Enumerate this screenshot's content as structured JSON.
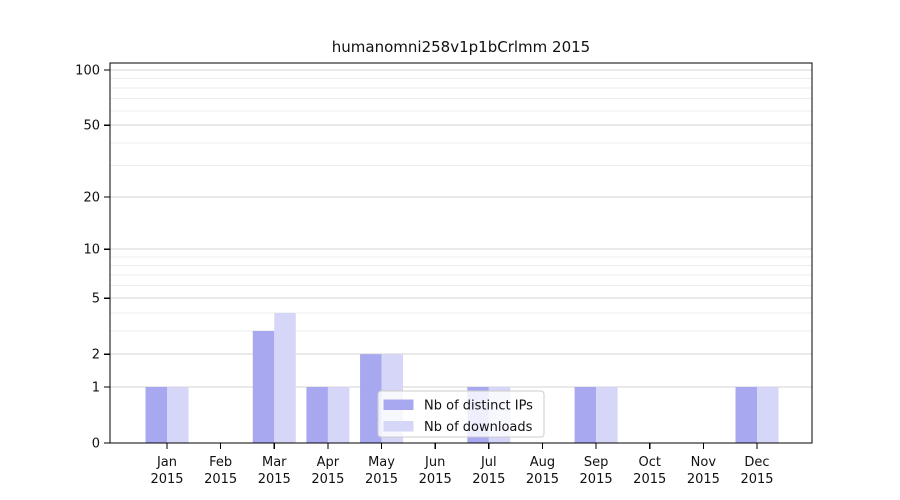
{
  "chart_data": {
    "type": "bar",
    "title": "humanomni258v1p1bCrlmm 2015",
    "categories": [
      "Jan",
      "Feb",
      "Mar",
      "Apr",
      "May",
      "Jun",
      "Jul",
      "Aug",
      "Sep",
      "Oct",
      "Nov",
      "Dec"
    ],
    "year": "2015",
    "series": [
      {
        "name": "Nb of distinct IPs",
        "color": "#a8a8f0",
        "values": [
          1,
          0,
          3,
          1,
          2,
          0,
          1,
          0,
          1,
          0,
          0,
          1
        ]
      },
      {
        "name": "Nb of downloads",
        "color": "#d6d6f8",
        "values": [
          1,
          0,
          4,
          1,
          2,
          0,
          1,
          0,
          1,
          0,
          0,
          1
        ]
      }
    ],
    "xlabel": "",
    "ylabel": "",
    "y_scale": "log1p",
    "y_ticks": [
      0,
      1,
      2,
      5,
      10,
      20,
      50,
      100
    ],
    "y_minor_grid": [
      3,
      4,
      6,
      7,
      8,
      9,
      30,
      40,
      60,
      70,
      80,
      90
    ],
    "ylim": [
      0,
      110
    ],
    "grid": "horizontal",
    "legend_position": "lower center",
    "colors": {
      "background": "#ffffff",
      "spine": "#000000",
      "major_grid": "#d3d3d3",
      "minor_grid": "#ececec",
      "legend_border": "#cccccc",
      "legend_background": "rgba(255,255,255,0.8)",
      "text": "#111111"
    }
  }
}
